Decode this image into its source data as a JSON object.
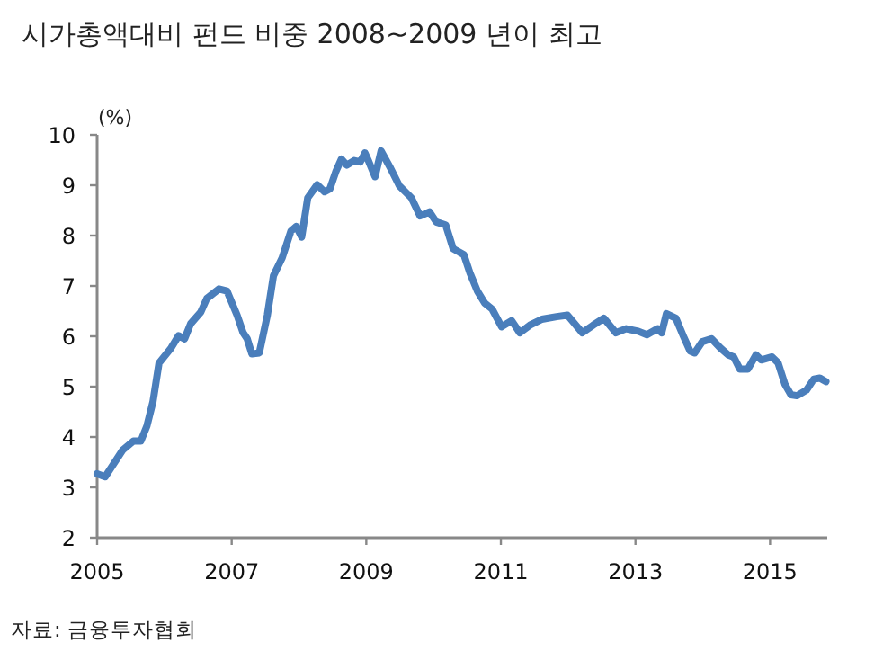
{
  "chart_data": {
    "type": "line",
    "title": "시가총액대비 펀드 비중 2008~2009 년이 최고",
    "ylabel": "(%)",
    "annotations": [
      "자료: 금융투자협회"
    ],
    "color": "#4a7ebb",
    "x": [
      2005.0,
      2005.12,
      2005.38,
      2005.54,
      2005.65,
      2005.74,
      2005.83,
      2005.92,
      2006.1,
      2006.21,
      2006.3,
      2006.39,
      2006.54,
      2006.63,
      2006.81,
      2006.93,
      2007.08,
      2007.17,
      2007.23,
      2007.3,
      2007.41,
      2007.53,
      2007.62,
      2007.75,
      2007.88,
      2007.96,
      2008.04,
      2008.13,
      2008.27,
      2008.38,
      2008.46,
      2008.55,
      2008.63,
      2008.71,
      2008.82,
      2008.91,
      2008.98,
      2009.04,
      2009.13,
      2009.22,
      2009.36,
      2009.49,
      2009.67,
      2009.8,
      2009.94,
      2010.04,
      2010.18,
      2010.29,
      2010.45,
      2010.54,
      2010.65,
      2010.76,
      2010.87,
      2011.01,
      2011.16,
      2011.28,
      2011.43,
      2011.61,
      2011.83,
      2011.99,
      2012.21,
      2012.37,
      2012.53,
      2012.71,
      2012.86,
      2013.04,
      2013.17,
      2013.33,
      2013.39,
      2013.46,
      2013.6,
      2013.71,
      2013.81,
      2013.88,
      2013.99,
      2014.13,
      2014.26,
      2014.38,
      2014.46,
      2014.55,
      2014.67,
      2014.79,
      2014.87,
      2015.03,
      2015.12,
      2015.22,
      2015.31,
      2015.4,
      2015.54,
      2015.65,
      2015.74,
      2015.83
    ],
    "values": [
      3.27,
      3.21,
      3.74,
      3.92,
      3.92,
      4.22,
      4.7,
      5.47,
      5.77,
      6.01,
      5.95,
      6.25,
      6.48,
      6.75,
      6.94,
      6.9,
      6.42,
      6.07,
      5.95,
      5.65,
      5.67,
      6.42,
      7.2,
      7.56,
      8.09,
      8.18,
      7.97,
      8.75,
      9.01,
      8.87,
      8.93,
      9.28,
      9.52,
      9.4,
      9.49,
      9.46,
      9.64,
      9.46,
      9.17,
      9.68,
      9.34,
      8.99,
      8.75,
      8.39,
      8.47,
      8.27,
      8.21,
      7.74,
      7.62,
      7.26,
      6.9,
      6.66,
      6.54,
      6.19,
      6.31,
      6.07,
      6.22,
      6.34,
      6.39,
      6.42,
      6.07,
      6.22,
      6.36,
      6.07,
      6.15,
      6.1,
      6.03,
      6.15,
      6.07,
      6.45,
      6.36,
      6.01,
      5.71,
      5.67,
      5.89,
      5.95,
      5.77,
      5.63,
      5.59,
      5.35,
      5.35,
      5.63,
      5.53,
      5.59,
      5.47,
      5.05,
      4.84,
      4.82,
      4.93,
      5.15,
      5.17,
      5.1
    ],
    "xlim": [
      2005,
      2015.85
    ],
    "ylim": [
      2,
      10
    ],
    "xticks": [
      2005,
      2007,
      2009,
      2011,
      2013,
      2015
    ],
    "yticks": [
      2,
      3,
      4,
      5,
      6,
      7,
      8,
      9,
      10
    ]
  }
}
